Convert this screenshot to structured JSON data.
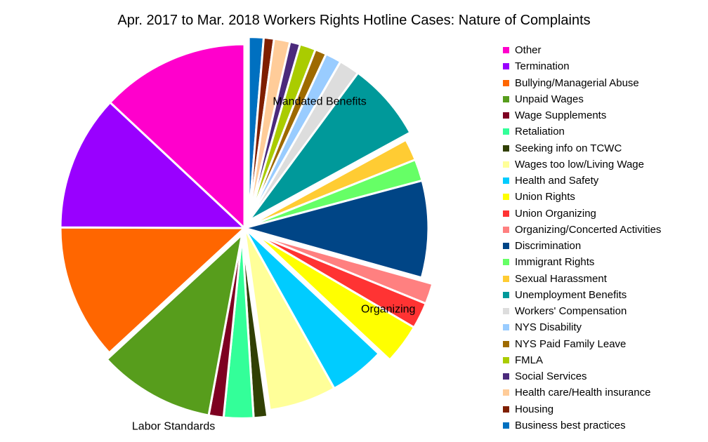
{
  "chart_data": {
    "type": "pie",
    "title": "Apr. 2017 to Mar. 2018 Workers Rights Hotline Cases: Nature of Complaints",
    "legend_position": "right",
    "slices": [
      {
        "label": "Business best practices",
        "value": 1.3,
        "color": "#0070C0"
      },
      {
        "label": "Housing",
        "value": 0.9,
        "color": "#7F1F00"
      },
      {
        "label": "Health care/Health insurance",
        "value": 1.4,
        "color": "#FFCC99"
      },
      {
        "label": "Social Services",
        "value": 0.9,
        "color": "#4B2A7C"
      },
      {
        "label": "FMLA",
        "value": 1.4,
        "color": "#AACC00"
      },
      {
        "label": "NYS Paid Family Leave",
        "value": 1.0,
        "color": "#9E6A00"
      },
      {
        "label": "NYS Disability",
        "value": 1.4,
        "color": "#99CCFF"
      },
      {
        "label": "Workers' Compensation",
        "value": 1.8,
        "color": "#DDDDDD"
      },
      {
        "label": "Unemployment Benefits",
        "value": 6.9,
        "color": "#00999A"
      },
      {
        "label": "Sexual Harassment",
        "value": 1.9,
        "color": "#FFCC33"
      },
      {
        "label": "Immigrant Rights",
        "value": 1.9,
        "color": "#66FF66"
      },
      {
        "label": "Discrimination",
        "value": 8.5,
        "color": "#004586"
      },
      {
        "label": "Organizing/Concerted Activities",
        "value": 1.8,
        "color": "#FF8080"
      },
      {
        "label": "Union Organizing",
        "value": 2.3,
        "color": "#FF3333"
      },
      {
        "label": "Union Rights",
        "value": 3.5,
        "color": "#FFFF00"
      },
      {
        "label": "Health and Safety",
        "value": 4.9,
        "color": "#00CCFF"
      },
      {
        "label": "Wages too low/Living Wage",
        "value": 5.9,
        "color": "#FFFF99"
      },
      {
        "label": "Seeking info on TCWC",
        "value": 1.2,
        "color": "#314004"
      },
      {
        "label": "Retaliation",
        "value": 2.6,
        "color": "#33FF99"
      },
      {
        "label": "Wage Supplements",
        "value": 1.3,
        "color": "#7E0021"
      },
      {
        "label": "Unpaid Wages",
        "value": 10.2,
        "color": "#579D1C"
      },
      {
        "label": "Bullying/Managerial Abuse",
        "value": 11.9,
        "color": "#FF6600"
      },
      {
        "label": "Termination",
        "value": 11.9,
        "color": "#9900FF"
      },
      {
        "label": "Other",
        "value": 13.0,
        "color": "#FF00CC"
      }
    ],
    "groups": [
      {
        "label": "Mandated Benefits",
        "members": [
          "Business best practices",
          "Housing",
          "Health care/Health insurance",
          "Social Services",
          "FMLA",
          "NYS Paid Family Leave",
          "NYS Disability",
          "Workers' Compensation",
          "Unemployment Benefits"
        ]
      },
      {
        "label": "Organizing",
        "members": [
          "Organizing/Concerted Activities",
          "Union Organizing",
          "Union Rights"
        ]
      },
      {
        "label": "Labor Standards",
        "members": [
          "Seeking info on TCWC",
          "Retaliation",
          "Wage Supplements",
          "Unpaid Wages"
        ]
      }
    ],
    "legend_order": [
      "Other",
      "Termination",
      "Bullying/Managerial Abuse",
      "Unpaid Wages",
      "Wage Supplements",
      "Retaliation",
      "Seeking info on TCWC",
      "Wages too low/Living Wage",
      "Health and Safety",
      "Union Rights",
      "Union Organizing",
      "Organizing/Concerted Activities",
      "Discrimination",
      "Immigrant Rights",
      "Sexual Harassment",
      "Unemployment Benefits",
      "Workers' Compensation",
      "NYS Disability",
      "NYS Paid Family Leave",
      "FMLA",
      "Social Services",
      "Health care/Health insurance",
      "Housing",
      "Business best practices"
    ]
  }
}
